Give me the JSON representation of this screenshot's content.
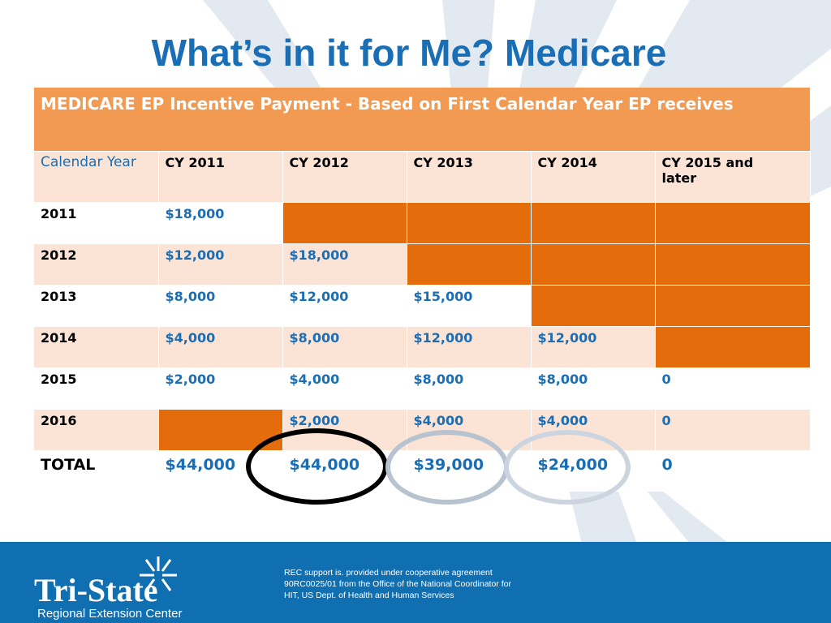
{
  "title": "What’s in it for Me? Medicare",
  "table": {
    "header": "MEDICARE EP Incentive Payment -  Based on First Calendar Year EP receives",
    "columns": [
      "Calendar Year",
      "CY 2011",
      "CY 2012",
      "CY 2013",
      "CY 2014",
      "CY 2015 and later"
    ],
    "rows": [
      {
        "year": "2011",
        "cells": [
          "$18,000",
          "",
          "",
          "",
          ""
        ]
      },
      {
        "year": "2012",
        "cells": [
          "$12,000",
          "$18,000",
          "",
          "",
          ""
        ]
      },
      {
        "year": "2013",
        "cells": [
          "$8,000",
          "$12,000",
          "$15,000",
          "",
          ""
        ]
      },
      {
        "year": "2014",
        "cells": [
          "$4,000",
          "$8,000",
          "$12,000",
          "$12,000",
          ""
        ]
      },
      {
        "year": "2015",
        "cells": [
          "$2,000",
          "$4,000",
          "$8,000",
          "$8,000",
          "0"
        ]
      },
      {
        "year": "2016",
        "cells": [
          "",
          "$2,000",
          "$4,000",
          "$4,000",
          "0"
        ]
      }
    ],
    "total": {
      "label": "TOTAL",
      "cells": [
        "$44,000",
        "$44,000",
        "$39,000",
        "$24,000",
        "0"
      ]
    },
    "filled_color": "#e46c0a"
  },
  "footer": {
    "logo_name": "Tri-State",
    "logo_sub": "Regional Extension Center",
    "support_text": "REC support is. provided under cooperative agreement 90RC0025/01 from the Office of the National Coordinator for HIT, US Dept. of Health and Human Services"
  },
  "colors": {
    "title": "#1a6eb5",
    "header_bg": "#f29a52",
    "band": "#fbe4d6",
    "footer_bg": "#0f6fb0"
  }
}
